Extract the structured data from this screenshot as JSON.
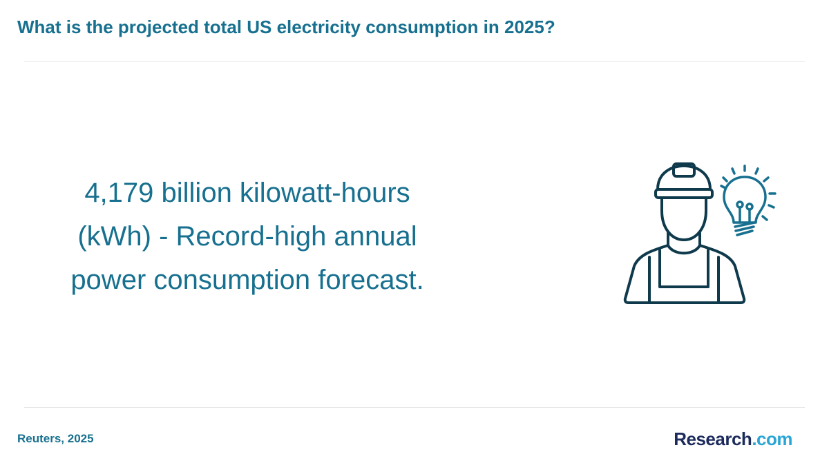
{
  "header": {
    "title": "What is the projected total US electricity consumption in 2025?"
  },
  "body": {
    "lines": [
      "4,179 billion kilowatt-hours",
      "(kWh) - Record-high annual",
      "power consumption forecast."
    ]
  },
  "footer": {
    "source": "Reuters, 2025",
    "logo": {
      "name": "Research",
      "suffix": ".com"
    }
  }
}
